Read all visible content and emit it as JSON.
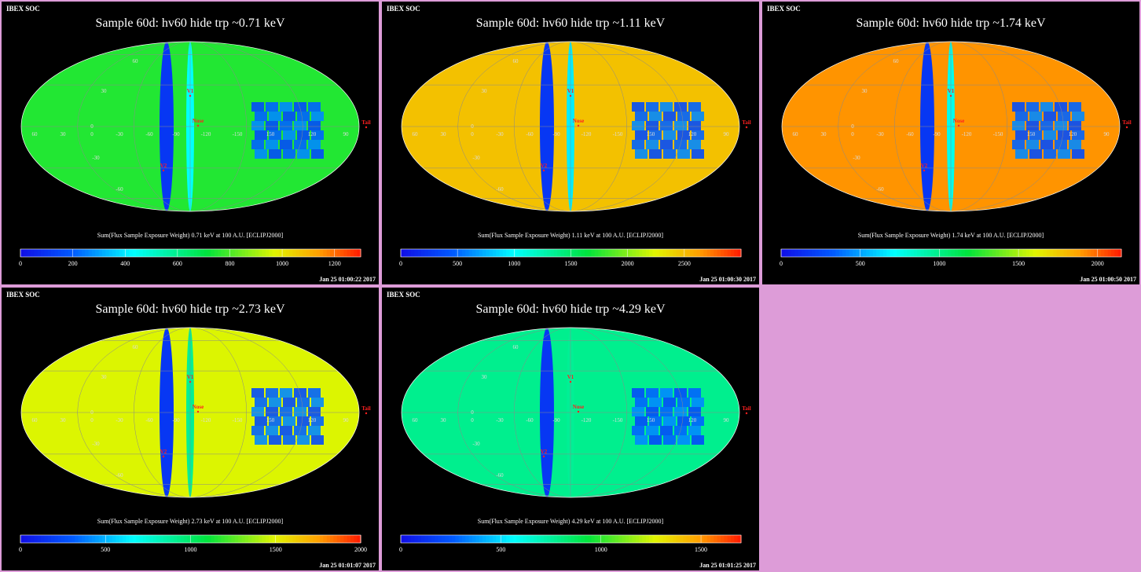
{
  "colors": {
    "background": "#dd9cd8",
    "panel": "#000000",
    "marker": "#ff2020",
    "grid": "#8a8a8a"
  },
  "labels": {
    "org": "IBEX SOC",
    "lat": [
      "60",
      "30",
      "0",
      "-30",
      "-60"
    ],
    "lon": [
      "60",
      "30",
      "0",
      "-30",
      "-60",
      "-90",
      "-120",
      "-150",
      "150",
      "120",
      "90"
    ],
    "markers": [
      "V1",
      "Nose",
      "V2",
      "Tail"
    ]
  },
  "chart_data": [
    {
      "type": "heatmap",
      "title": "Sample 60d: hv60 hide trp ~0.71 keV",
      "colorbar_label": "Sum(Flux Sample Exposure Weight)  0.71 keV at 100 A.U. [ECLIPJ2000]",
      "colorbar_ticks": [
        0,
        200,
        400,
        600,
        800,
        1000,
        1200
      ],
      "colorbar_range": [
        0,
        1300
      ],
      "timestamp": "Jan 25 01:00:22 2017"
    },
    {
      "type": "heatmap",
      "title": "Sample 60d: hv60 hide trp ~1.11 keV",
      "colorbar_label": "Sum(Flux Sample Exposure Weight)  1.11 keV at 100 A.U. [ECLIPJ2000]",
      "colorbar_ticks": [
        0,
        500,
        1000,
        1500,
        2000,
        2500
      ],
      "colorbar_range": [
        0,
        3000
      ],
      "timestamp": "Jan 25 01:00:30 2017"
    },
    {
      "type": "heatmap",
      "title": "Sample 60d: hv60 hide trp ~1.74 keV",
      "colorbar_label": "Sum(Flux Sample Exposure Weight)  1.74 keV at 100 A.U. [ECLIPJ2000]",
      "colorbar_ticks": [
        0,
        500,
        1000,
        1500,
        2000
      ],
      "colorbar_range": [
        0,
        2150
      ],
      "timestamp": "Jan 25 01:00:50 2017"
    },
    {
      "type": "heatmap",
      "title": "Sample 60d: hv60 hide trp ~2.73 keV",
      "colorbar_label": "Sum(Flux Sample Exposure Weight)  2.73 keV at 100 A.U. [ECLIPJ2000]",
      "colorbar_ticks": [
        0,
        500,
        1000,
        1500,
        2000
      ],
      "colorbar_range": [
        0,
        2000
      ],
      "timestamp": "Jan 25 01:01:07 2017"
    },
    {
      "type": "heatmap",
      "title": "Sample 60d: hv60 hide trp ~4.29 keV",
      "colorbar_label": "Sum(Flux Sample Exposure Weight)  4.29 keV at 100 A.U. [ECLIPJ2000]",
      "colorbar_ticks": [
        0,
        500,
        1000,
        1500
      ],
      "colorbar_range": [
        0,
        1700
      ],
      "timestamp": "Jan 25 01:01:25 2017"
    }
  ]
}
